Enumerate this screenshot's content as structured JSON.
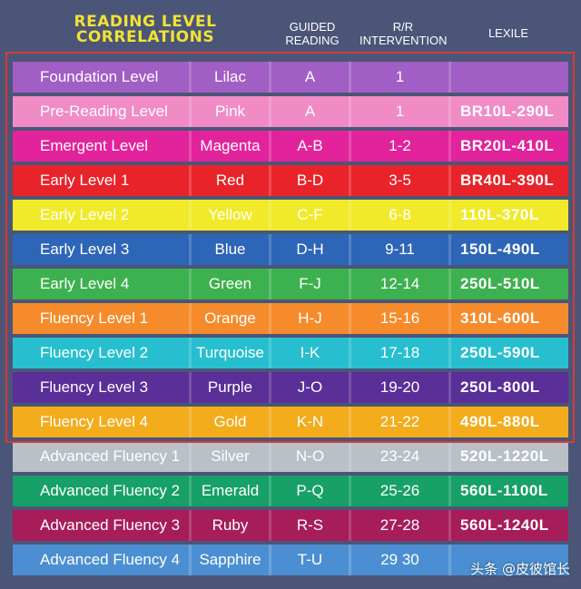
{
  "header": {
    "title_line1": "READING LEVEL",
    "title_line2": "CORRELATIONS",
    "col_guided": "GUIDED READING",
    "col_rr": "R/R INTERVENTION",
    "col_lexile": "LEXILE"
  },
  "rows": [
    {
      "level": "Foundation Level",
      "color_name": "Lilac",
      "guided": "A",
      "rr": "1",
      "lexile": "",
      "bg": "#a15ec4"
    },
    {
      "level": "Pre-Reading Level",
      "color_name": "Pink",
      "guided": "A",
      "rr": "1",
      "lexile": "BR10L-290L",
      "bg": "#f18bc6"
    },
    {
      "level": "Emergent Level",
      "color_name": "Magenta",
      "guided": "A-B",
      "rr": "1-2",
      "lexile": "BR20L-410L",
      "bg": "#e2239b"
    },
    {
      "level": "Early Level 1",
      "color_name": "Red",
      "guided": "B-D",
      "rr": "3-5",
      "lexile": "BR40L-390L",
      "bg": "#e8232a"
    },
    {
      "level": "Early Level 2",
      "color_name": "Yellow",
      "guided": "C-F",
      "rr": "6-8",
      "lexile": "110L-370L",
      "bg": "#f0ea2a"
    },
    {
      "level": "Early Level 3",
      "color_name": "Blue",
      "guided": "D-H",
      "rr": "9-11",
      "lexile": "150L-490L",
      "bg": "#2e66b7"
    },
    {
      "level": "Early Level 4",
      "color_name": "Green",
      "guided": "F-J",
      "rr": "12-14",
      "lexile": "250L-510L",
      "bg": "#3db14f"
    },
    {
      "level": "Fluency Level 1",
      "color_name": "Orange",
      "guided": "H-J",
      "rr": "15-16",
      "lexile": "310L-600L",
      "bg": "#f58b2b"
    },
    {
      "level": "Fluency Level 2",
      "color_name": "Turquoise",
      "guided": "I-K",
      "rr": "17-18",
      "lexile": "250L-590L",
      "bg": "#27bfcf"
    },
    {
      "level": "Fluency Level 3",
      "color_name": "Purple",
      "guided": "J-O",
      "rr": "19-20",
      "lexile": "250L-800L",
      "bg": "#5a2f97"
    },
    {
      "level": "Fluency Level 4",
      "color_name": "Gold",
      "guided": "K-N",
      "rr": "21-22",
      "lexile": "490L-880L",
      "bg": "#f2ac1c"
    },
    {
      "level": "Advanced Fluency 1",
      "color_name": "Silver",
      "guided": "N-O",
      "rr": "23-24",
      "lexile": "520L-1220L",
      "bg": "#b9c0c6"
    },
    {
      "level": "Advanced Fluency 2",
      "color_name": "Emerald",
      "guided": "P-Q",
      "rr": "25-26",
      "lexile": "560L-1100L",
      "bg": "#17a067"
    },
    {
      "level": "Advanced Fluency 3",
      "color_name": "Ruby",
      "guided": "R-S",
      "rr": "27-28",
      "lexile": "560L-1240L",
      "bg": "#a61d5a"
    },
    {
      "level": "Advanced Fluency 4",
      "color_name": "Sapphire",
      "guided": "T-U",
      "rr": "29 30",
      "lexile": "",
      "bg": "#4b8fd2"
    }
  ],
  "highlight_color": "#d83a3a",
  "watermark": "头条 @皮彼馆长"
}
